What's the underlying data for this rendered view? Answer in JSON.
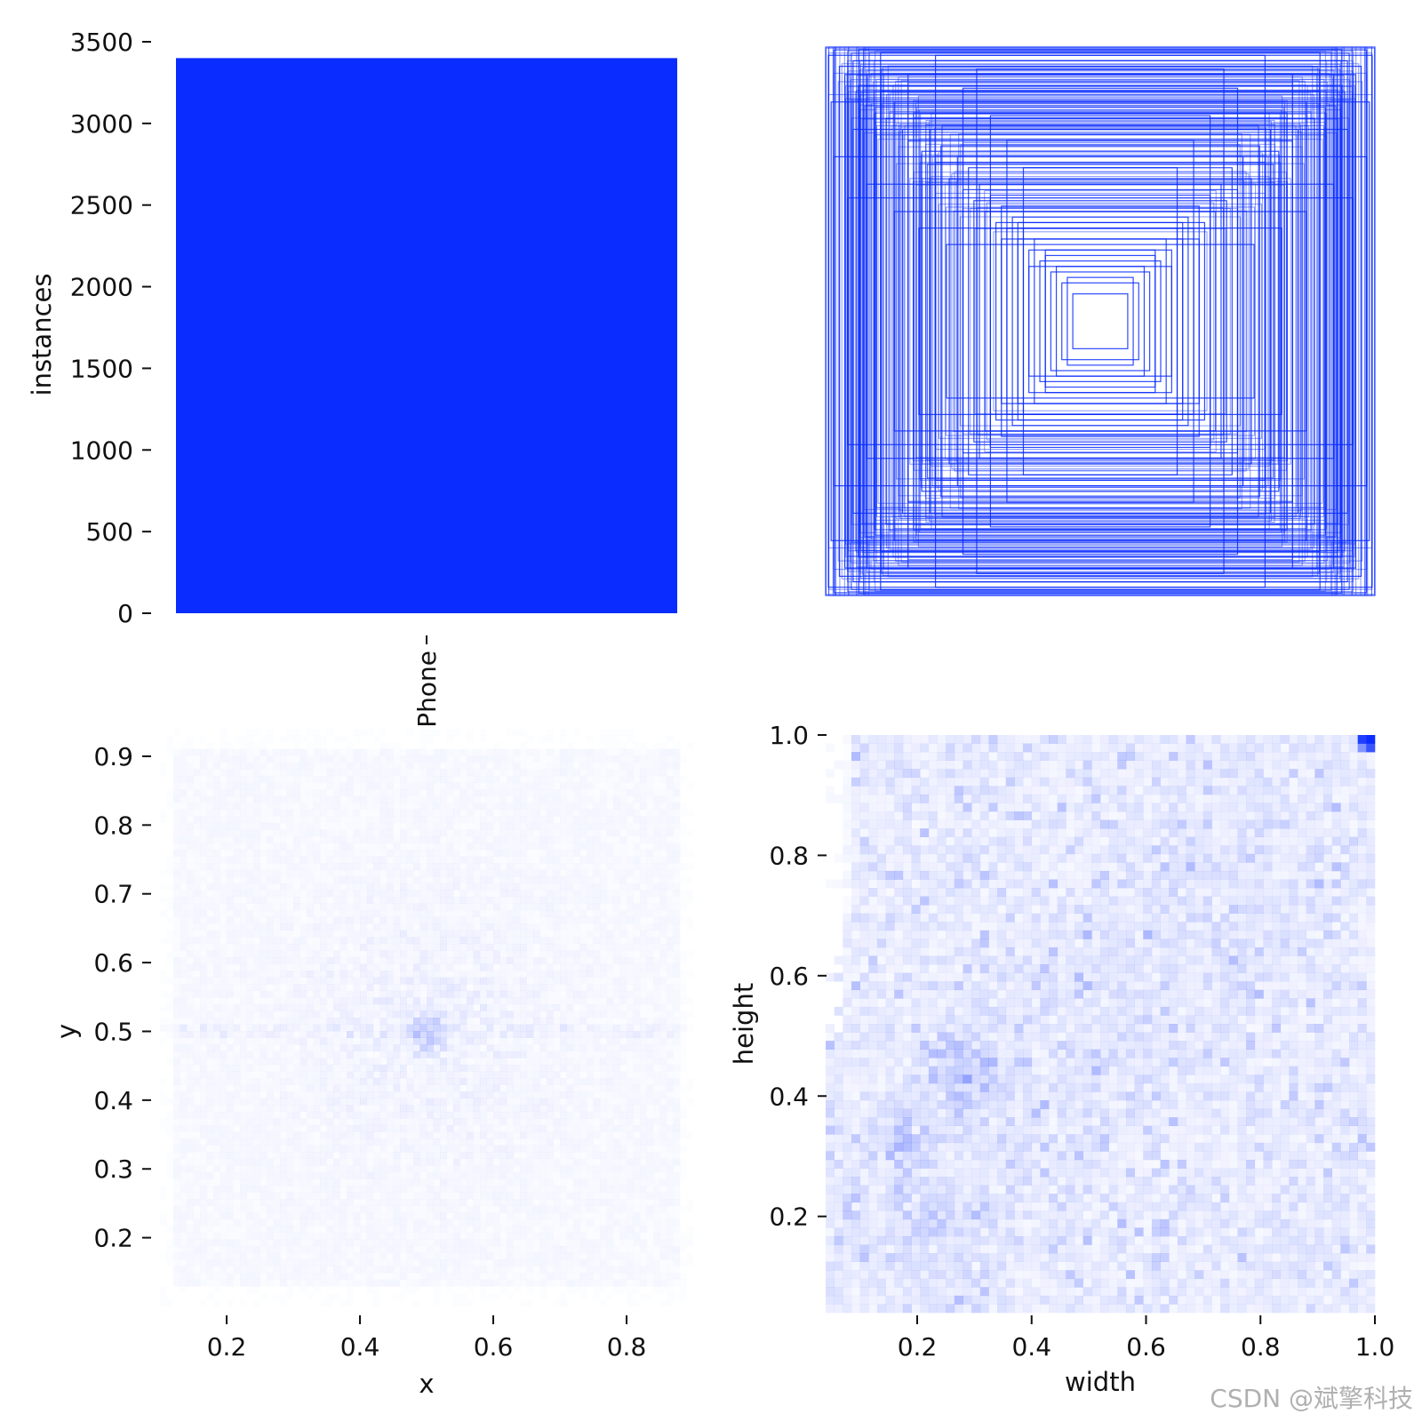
{
  "chart_data": [
    {
      "type": "bar",
      "categories": [
        "Phone"
      ],
      "values": [
        3400
      ],
      "ylabel": "instances",
      "xlabel": "",
      "ylim": [
        0,
        3500
      ],
      "yticks": [
        "0",
        "500",
        "1000",
        "1500",
        "2000",
        "2500",
        "3000",
        "3500"
      ],
      "color": "#0a2cff"
    },
    {
      "type": "scatter",
      "description_kind": "box-outlines",
      "note": "overlaid centered bounding boxes, width/height fractions",
      "boxes": [
        [
          1.0,
          1.0
        ],
        [
          0.99,
          0.97
        ],
        [
          0.97,
          0.99
        ],
        [
          0.95,
          0.93
        ],
        [
          0.93,
          0.9
        ],
        [
          0.9,
          0.95
        ],
        [
          0.88,
          0.86
        ],
        [
          0.85,
          0.9
        ],
        [
          0.82,
          0.78
        ],
        [
          0.8,
          0.84
        ],
        [
          0.78,
          0.74
        ],
        [
          0.75,
          0.8
        ],
        [
          0.72,
          0.7
        ],
        [
          0.7,
          0.66
        ],
        [
          0.68,
          0.76
        ],
        [
          0.65,
          0.62
        ],
        [
          0.62,
          0.7
        ],
        [
          0.6,
          0.58
        ],
        [
          0.58,
          0.64
        ],
        [
          0.55,
          0.52
        ],
        [
          0.52,
          0.6
        ],
        [
          0.5,
          0.48
        ],
        [
          0.48,
          0.56
        ],
        [
          0.46,
          0.44
        ],
        [
          0.44,
          0.5
        ],
        [
          0.42,
          0.4
        ],
        [
          0.4,
          0.46
        ],
        [
          0.38,
          0.36
        ],
        [
          0.36,
          0.42
        ],
        [
          0.34,
          0.34
        ],
        [
          0.32,
          0.38
        ],
        [
          0.3,
          0.3
        ],
        [
          0.28,
          0.34
        ],
        [
          0.26,
          0.26
        ],
        [
          0.24,
          0.3
        ],
        [
          0.22,
          0.22
        ],
        [
          0.2,
          0.24
        ],
        [
          0.18,
          0.18
        ],
        [
          0.16,
          0.2
        ],
        [
          0.14,
          0.14
        ],
        [
          0.12,
          0.16
        ],
        [
          0.1,
          0.1
        ],
        [
          0.97,
          0.6
        ],
        [
          0.6,
          0.97
        ],
        [
          0.92,
          0.45
        ],
        [
          0.45,
          0.92
        ],
        [
          0.85,
          0.5
        ],
        [
          0.5,
          0.85
        ],
        [
          0.75,
          0.4
        ],
        [
          0.4,
          0.75
        ],
        [
          0.66,
          0.34
        ],
        [
          0.34,
          0.66
        ],
        [
          0.56,
          0.28
        ],
        [
          0.28,
          0.56
        ],
        [
          0.98,
          0.8
        ],
        [
          0.8,
          0.98
        ],
        [
          0.9,
          0.7
        ],
        [
          0.7,
          0.9
        ],
        [
          0.36,
          0.3
        ],
        [
          0.3,
          0.36
        ],
        [
          0.26,
          0.2
        ],
        [
          0.2,
          0.26
        ]
      ],
      "color": "#0a2cff"
    },
    {
      "type": "heatmap",
      "xlabel": "x",
      "ylabel": "y",
      "xlim": [
        0.1,
        0.9
      ],
      "ylim": [
        0.1,
        0.94
      ],
      "xticks": [
        "0.2",
        "0.4",
        "0.6",
        "0.8"
      ],
      "yticks": [
        "0.2",
        "0.3",
        "0.4",
        "0.5",
        "0.6",
        "0.7",
        "0.8",
        "0.9"
      ],
      "peak": [
        0.5,
        0.5
      ],
      "color": "#0a2cff"
    },
    {
      "type": "heatmap",
      "xlabel": "width",
      "ylabel": "height",
      "xlim": [
        0.04,
        1.0
      ],
      "ylim": [
        0.04,
        1.0
      ],
      "xticks": [
        "0.2",
        "0.4",
        "0.6",
        "0.8",
        "1.0"
      ],
      "yticks": [
        "0.2",
        "0.4",
        "0.6",
        "0.8",
        "1.0"
      ],
      "peak": [
        1.0,
        0.99
      ],
      "secondary_peaks": [
        [
          0.18,
          0.34
        ],
        [
          0.3,
          0.42
        ],
        [
          0.22,
          0.2
        ],
        [
          0.25,
          0.46
        ]
      ],
      "color": "#0a2cff"
    }
  ],
  "watermark": "CSDN @斌擎科技"
}
